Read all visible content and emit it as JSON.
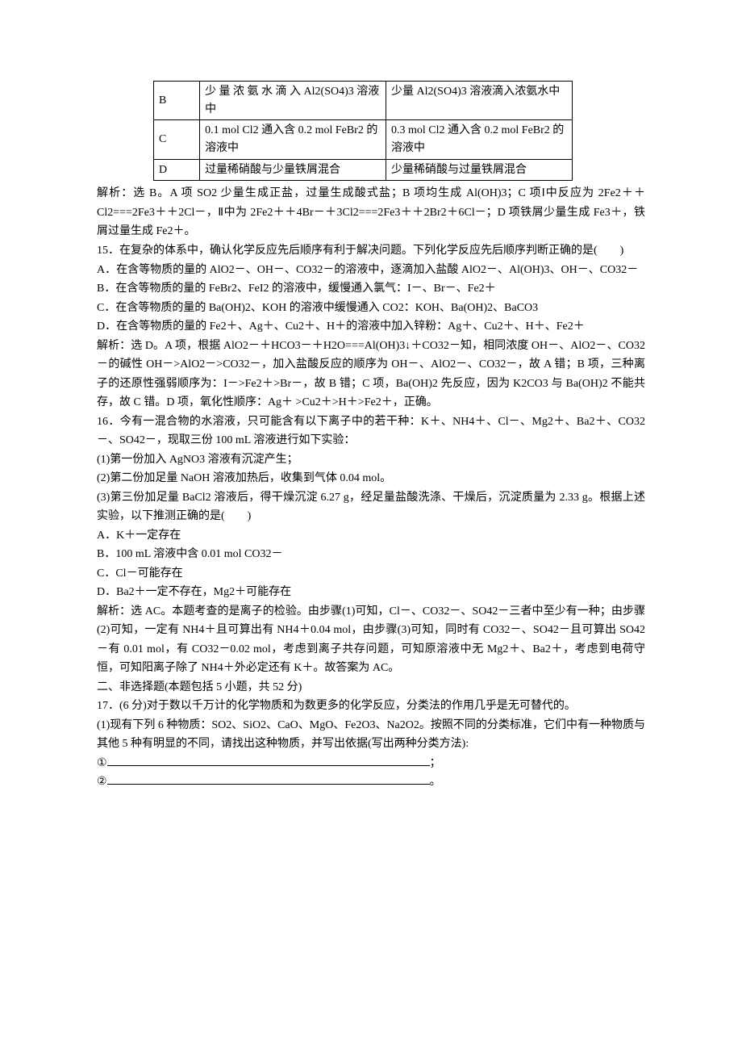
{
  "table": {
    "rows": [
      {
        "label": "B",
        "col1": "少 量 浓 氨 水 滴 入 Al2(SO4)3 溶液中",
        "col2": "少量 Al2(SO4)3 溶液滴入浓氨水中"
      },
      {
        "label": "C",
        "col1": "0.1 mol Cl2 通入含 0.2 mol FeBr2 的溶液中",
        "col2": "0.3 mol Cl2 通入含 0.2 mol FeBr2 的溶液中"
      },
      {
        "label": "D",
        "col1": "过量稀硝酸与少量铁屑混合",
        "col2": "少量稀硝酸与过量铁屑混合"
      }
    ]
  },
  "paras": {
    "p14ans": "解析：选 B。A 项 SO2 少量生成正盐，过量生成酸式盐；B 项均生成 Al(OH)3；C 项Ⅰ中反应为 2Fe2＋＋Cl2===2Fe3＋＋2Cl－，Ⅱ中为 2Fe2＋＋4Br－＋3Cl2===2Fe3＋＋2Br2＋6Cl－；D 项铁屑少量生成 Fe3＋，铁屑过量生成 Fe2＋。",
    "q15": "15．在复杂的体系中，确认化学反应先后顺序有利于解决问题。下列化学反应先后顺序判断正确的是(　　)",
    "q15a": "A．在含等物质的量的 AlO2－、OH－、CO32－的溶液中，逐滴加入盐酸 AlO2－、Al(OH)3、OH－、CO32－",
    "q15b": "B．在含等物质的量的 FeBr2、FeI2 的溶液中，缓慢通入氯气：I－、Br－、Fe2＋",
    "q15c": "C．在含等物质的量的 Ba(OH)2、KOH 的溶液中缓慢通入 CO2：KOH、Ba(OH)2、BaCO3",
    "q15d": "D．在含等物质的量的 Fe2＋、Ag＋、Cu2＋、H＋的溶液中加入锌粉：Ag＋、Cu2＋、H＋、Fe2＋",
    "p15ans": "解析：选 D。A 项，根据 AlO2－＋HCO3－＋H2O===Al(OH)3↓＋CO32－知，相同浓度 OH－、AlO2－、CO32－的碱性 OH－>AlO2－>CO32－，加入盐酸反应的顺序为 OH－、AlO2－、CO32－，故 A 错；B 项，三种离子的还原性强弱顺序为：I－>Fe2＋>Br－，故 B 错；C 项，Ba(OH)2 先反应，因为 K2CO3 与 Ba(OH)2 不能共存，故 C 错。D 项，氧化性顺序：Ag＋ >Cu2＋>H＋>Fe2＋，正确。",
    "q16": "16．今有一混合物的水溶液，只可能含有以下离子中的若干种：K＋、NH4＋、Cl－、Mg2＋、Ba2＋、CO32－、SO42－，现取三份 100 mL 溶液进行如下实验：",
    "q16_1": "(1)第一份加入 AgNO3 溶液有沉淀产生；",
    "q16_2": "(2)第二份加足量 NaOH 溶液加热后，收集到气体 0.04 mol。",
    "q16_3": "(3)第三份加足量 BaCl2 溶液后，得干燥沉淀 6.27 g，经足量盐酸洗涤、干燥后，沉淀质量为 2.33 g。根据上述实验，以下推测正确的是(　　)",
    "q16a": "A．K＋一定存在",
    "q16b": "B．100 mL 溶液中含 0.01 mol CO32－",
    "q16c": "C．Cl－可能存在",
    "q16d": "D．Ba2＋一定不存在，Mg2＋可能存在",
    "p16ans": "解析：选 AC。本题考查的是离子的检验。由步骤(1)可知，Cl－、CO32－、SO42－三者中至少有一种；由步骤(2)可知，一定有 NH4＋且可算出有 NH4＋0.04 mol，由步骤(3)可知，同时有 CO32－、SO42－且可算出 SO42－有 0.01 mol，有 CO32－0.02 mol，考虑到离子共存问题，可知原溶液中无 Mg2＋、Ba2＋，考虑到电荷守恒，可知阳离子除了 NH4＋外必定还有 K＋。故答案为 AC。",
    "sec2": "二、非选择题(本题包括 5 小题，共 52 分)",
    "q17": "17．(6 分)对于数以千万计的化学物质和为数更多的化学反应，分类法的作用几乎是无可替代的。",
    "q17_1": "(1)现有下列 6 种物质：SO2、SiO2、CaO、MgO、Fe2O3、Na2O2。按照不同的分类标准，它们中有一种物质与其他 5 种有明显的不同，请找出这种物质，并写出依据(写出两种分类方法):",
    "q17_blank1_prefix": "①",
    "q17_blank1_suffix": "；",
    "q17_blank2_prefix": "②",
    "q17_blank2_suffix": "。"
  }
}
